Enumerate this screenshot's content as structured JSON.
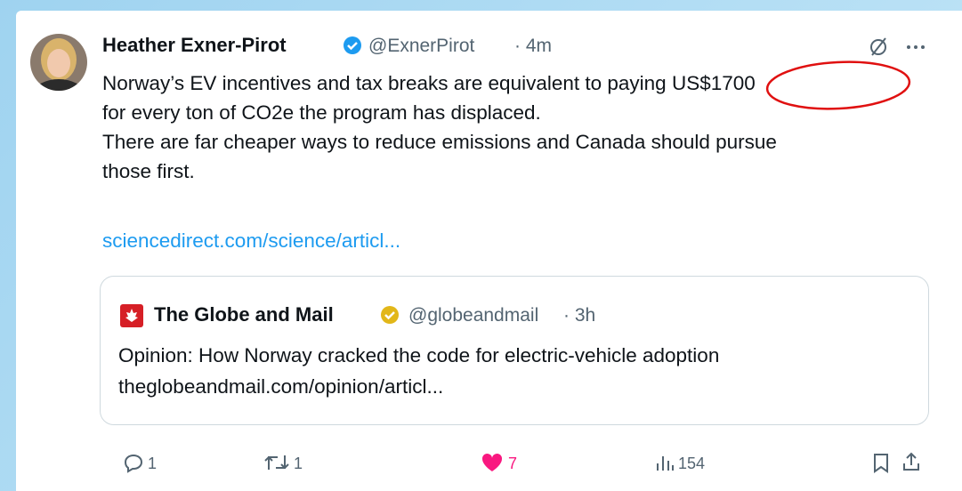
{
  "author": {
    "name": "Heather Exner-Pirot",
    "handle": "@ExnerPirot",
    "time": "· 4m"
  },
  "tweet": {
    "lines": [
      "Norway’s EV incentives and tax breaks are equivalent to paying US$1700",
      "for every ton of CO2e the program has displaced.",
      "There are far cheaper ways to reduce emissions and Canada should pursue",
      "those first."
    ],
    "link": "sciencedirect.com/science/articl..."
  },
  "quote": {
    "name": "The Globe and Mail",
    "handle": "@globeandmail",
    "time": "· 3h",
    "text": "Opinion: How Norway cracked the code for electric-vehicle adoption",
    "link": "theglobeandmail.com/opinion/articl..."
  },
  "actions": {
    "replies": 1,
    "reposts": 1,
    "likes": 7,
    "views": 154
  }
}
